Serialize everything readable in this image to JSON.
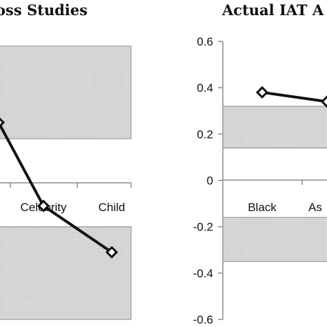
{
  "chart_data": [
    {
      "type": "line",
      "title": "oss Studies",
      "categories": [
        "",
        "Celebrity",
        "Child"
      ],
      "values": [
        0.25,
        -0.11,
        -0.31
      ],
      "ylim": [
        -0.6,
        0.6
      ],
      "shaded_bands": [
        [
          0.18,
          0.58
        ],
        [
          -0.6,
          -0.2
        ]
      ],
      "colors": {
        "line": "#111111",
        "marker_fill": "#ffffff",
        "band_fill": "#dcdcdc",
        "band_edge": "#9a9a9a"
      }
    },
    {
      "type": "line",
      "title": "Actual IAT A",
      "categories": [
        "Black",
        "As"
      ],
      "values": [
        0.38,
        0.34
      ],
      "ylim": [
        -0.6,
        0.6
      ],
      "yticks": [
        "0.6",
        "0.4",
        "0.2",
        "0",
        "-0.2",
        "-0.4",
        "-0.6"
      ],
      "shaded_bands": [
        [
          0.14,
          0.32
        ],
        [
          -0.35,
          -0.16
        ]
      ],
      "colors": {
        "line": "#111111",
        "marker_fill": "#ffffff",
        "band_fill": "#dcdcdc",
        "band_edge": "#9a9a9a"
      }
    }
  ]
}
